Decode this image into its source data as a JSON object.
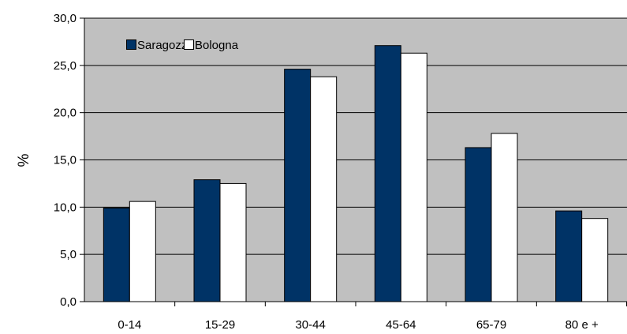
{
  "chart_data": {
    "type": "bar",
    "categories": [
      "0-14",
      "15-29",
      "30-44",
      "45-64",
      "65-79",
      "80 e +"
    ],
    "series": [
      {
        "name": "Saragozza",
        "color": "#003366",
        "values": [
          9.9,
          12.9,
          24.6,
          27.1,
          16.3,
          9.6
        ]
      },
      {
        "name": "Bologna",
        "color": "#ffffff",
        "values": [
          10.6,
          12.5,
          23.8,
          26.3,
          17.8,
          8.8
        ]
      }
    ],
    "title": "",
    "xlabel": "",
    "ylabel": "%",
    "ylim": [
      0,
      30
    ],
    "yticks": [
      "0,0",
      "5,0",
      "10,0",
      "15,0",
      "20,0",
      "25,0",
      "30,0"
    ],
    "grid": true,
    "plot_background": "#c0c0c0",
    "legend_position": "top-left"
  }
}
